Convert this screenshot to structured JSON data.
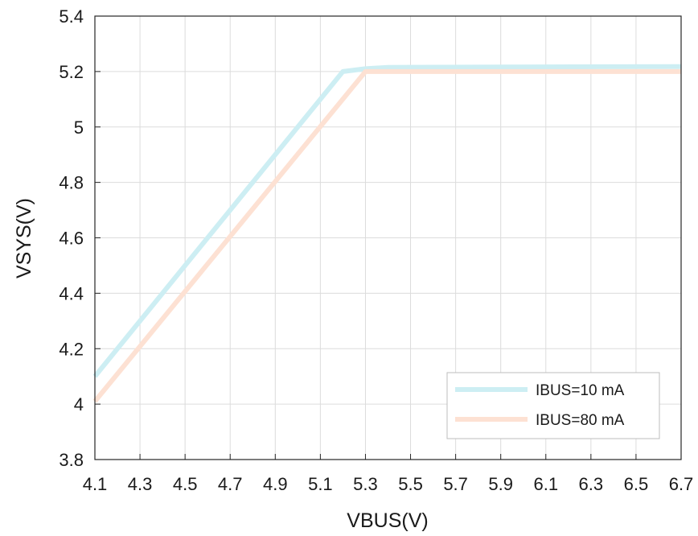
{
  "chart_data": {
    "type": "line",
    "title": "",
    "xlabel": "VBUS(V)",
    "ylabel": "VSYS(V)",
    "xlim": [
      4.1,
      6.7
    ],
    "ylim": [
      3.8,
      5.4
    ],
    "x_ticks": [
      4.1,
      4.3,
      4.5,
      4.7,
      4.9,
      5.1,
      5.3,
      5.5,
      5.7,
      5.9,
      6.1,
      6.3,
      6.5,
      6.7
    ],
    "x_tick_labels": [
      "4.1",
      "4.3",
      "4.5",
      "4.7",
      "4.9",
      "5.1",
      "5.3",
      "5.5",
      "5.7",
      "5.9",
      "6.1",
      "6.3",
      "6.5",
      "6.7"
    ],
    "y_ticks": [
      3.8,
      4.0,
      4.2,
      4.4,
      4.6,
      4.8,
      5.0,
      5.2,
      5.4
    ],
    "y_tick_labels": [
      "3.8",
      "4",
      "4.2",
      "4.4",
      "4.6",
      "4.8",
      "5",
      "5.2",
      "5.4"
    ],
    "grid": true,
    "legend_position": "bottom-right",
    "series": [
      {
        "name": "IBUS=10 mA",
        "color": "#cdeef3",
        "x": [
          4.1,
          5.2,
          5.3,
          5.4,
          6.7
        ],
        "y": [
          4.1,
          5.2,
          5.21,
          5.215,
          5.218
        ]
      },
      {
        "name": "IBUS=80 mA",
        "color": "#fde1d3",
        "x": [
          4.1,
          5.3,
          5.4,
          6.7
        ],
        "y": [
          4.01,
          5.2,
          5.2,
          5.2
        ]
      }
    ]
  }
}
